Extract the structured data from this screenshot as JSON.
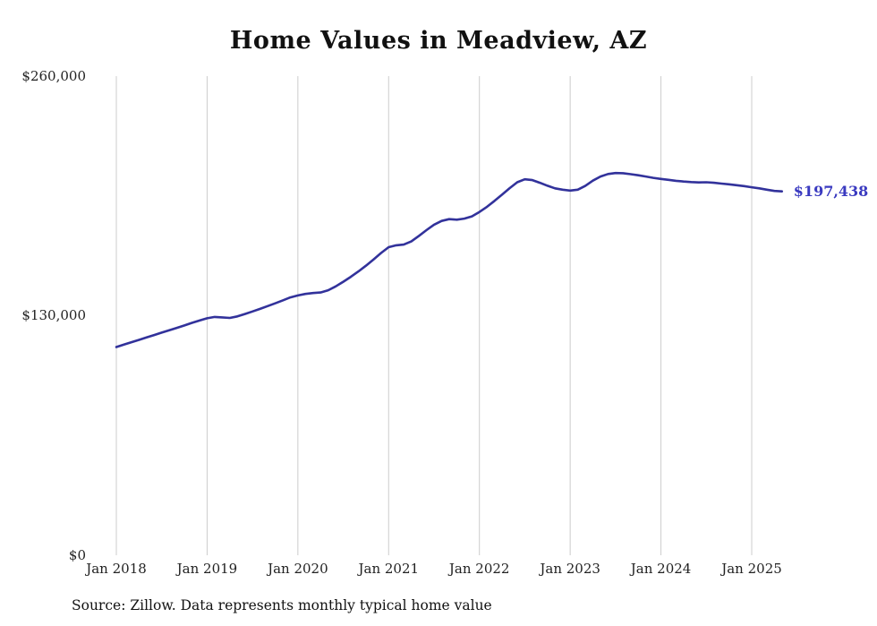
{
  "chart_data": {
    "type": "line",
    "title": "Home Values in Meadview, AZ",
    "source": "Source: Zillow. Data represents monthly typical home value",
    "end_label": "$197,438",
    "ylabel": "",
    "xlabel": "",
    "ylim": [
      0,
      260000
    ],
    "y_ticks": [
      0,
      130000,
      260000
    ],
    "y_tick_labels": [
      "$0",
      "$130,000",
      "$260,000"
    ],
    "x_tick_labels": [
      "Jan 2018",
      "Jan 2019",
      "Jan 2020",
      "Jan 2021",
      "Jan 2022",
      "Jan 2023",
      "Jan 2024",
      "Jan 2025"
    ],
    "x_start": "Jan 2018",
    "frequency": "monthly",
    "grid": "vertical-only",
    "legend": "none",
    "line_color": "#32329b",
    "label_color": "#3a3ac0",
    "grid_color": "#cccccc",
    "values": [
      113000,
      114300,
      115600,
      116900,
      118200,
      119500,
      120800,
      122100,
      123400,
      124700,
      126100,
      127400,
      128600,
      129300,
      129100,
      128800,
      129600,
      130900,
      132300,
      133700,
      135200,
      136700,
      138300,
      139900,
      141000,
      141800,
      142300,
      142600,
      143800,
      145900,
      148400,
      151100,
      154000,
      157100,
      160500,
      164000,
      167200,
      168200,
      168600,
      170300,
      173300,
      176400,
      179400,
      181400,
      182400,
      182100,
      182700,
      183900,
      186300,
      189100,
      192300,
      195700,
      199200,
      202400,
      204000,
      203600,
      202100,
      200500,
      199100,
      198400,
      197900,
      198400,
      200400,
      203300,
      205500,
      206900,
      207400,
      207300,
      206800,
      206200,
      205500,
      204800,
      204200,
      203700,
      203200,
      202800,
      202500,
      202300,
      202400,
      202100,
      201700,
      201300,
      200800,
      200300,
      199700,
      199100,
      198400,
      197700,
      197438
    ]
  }
}
